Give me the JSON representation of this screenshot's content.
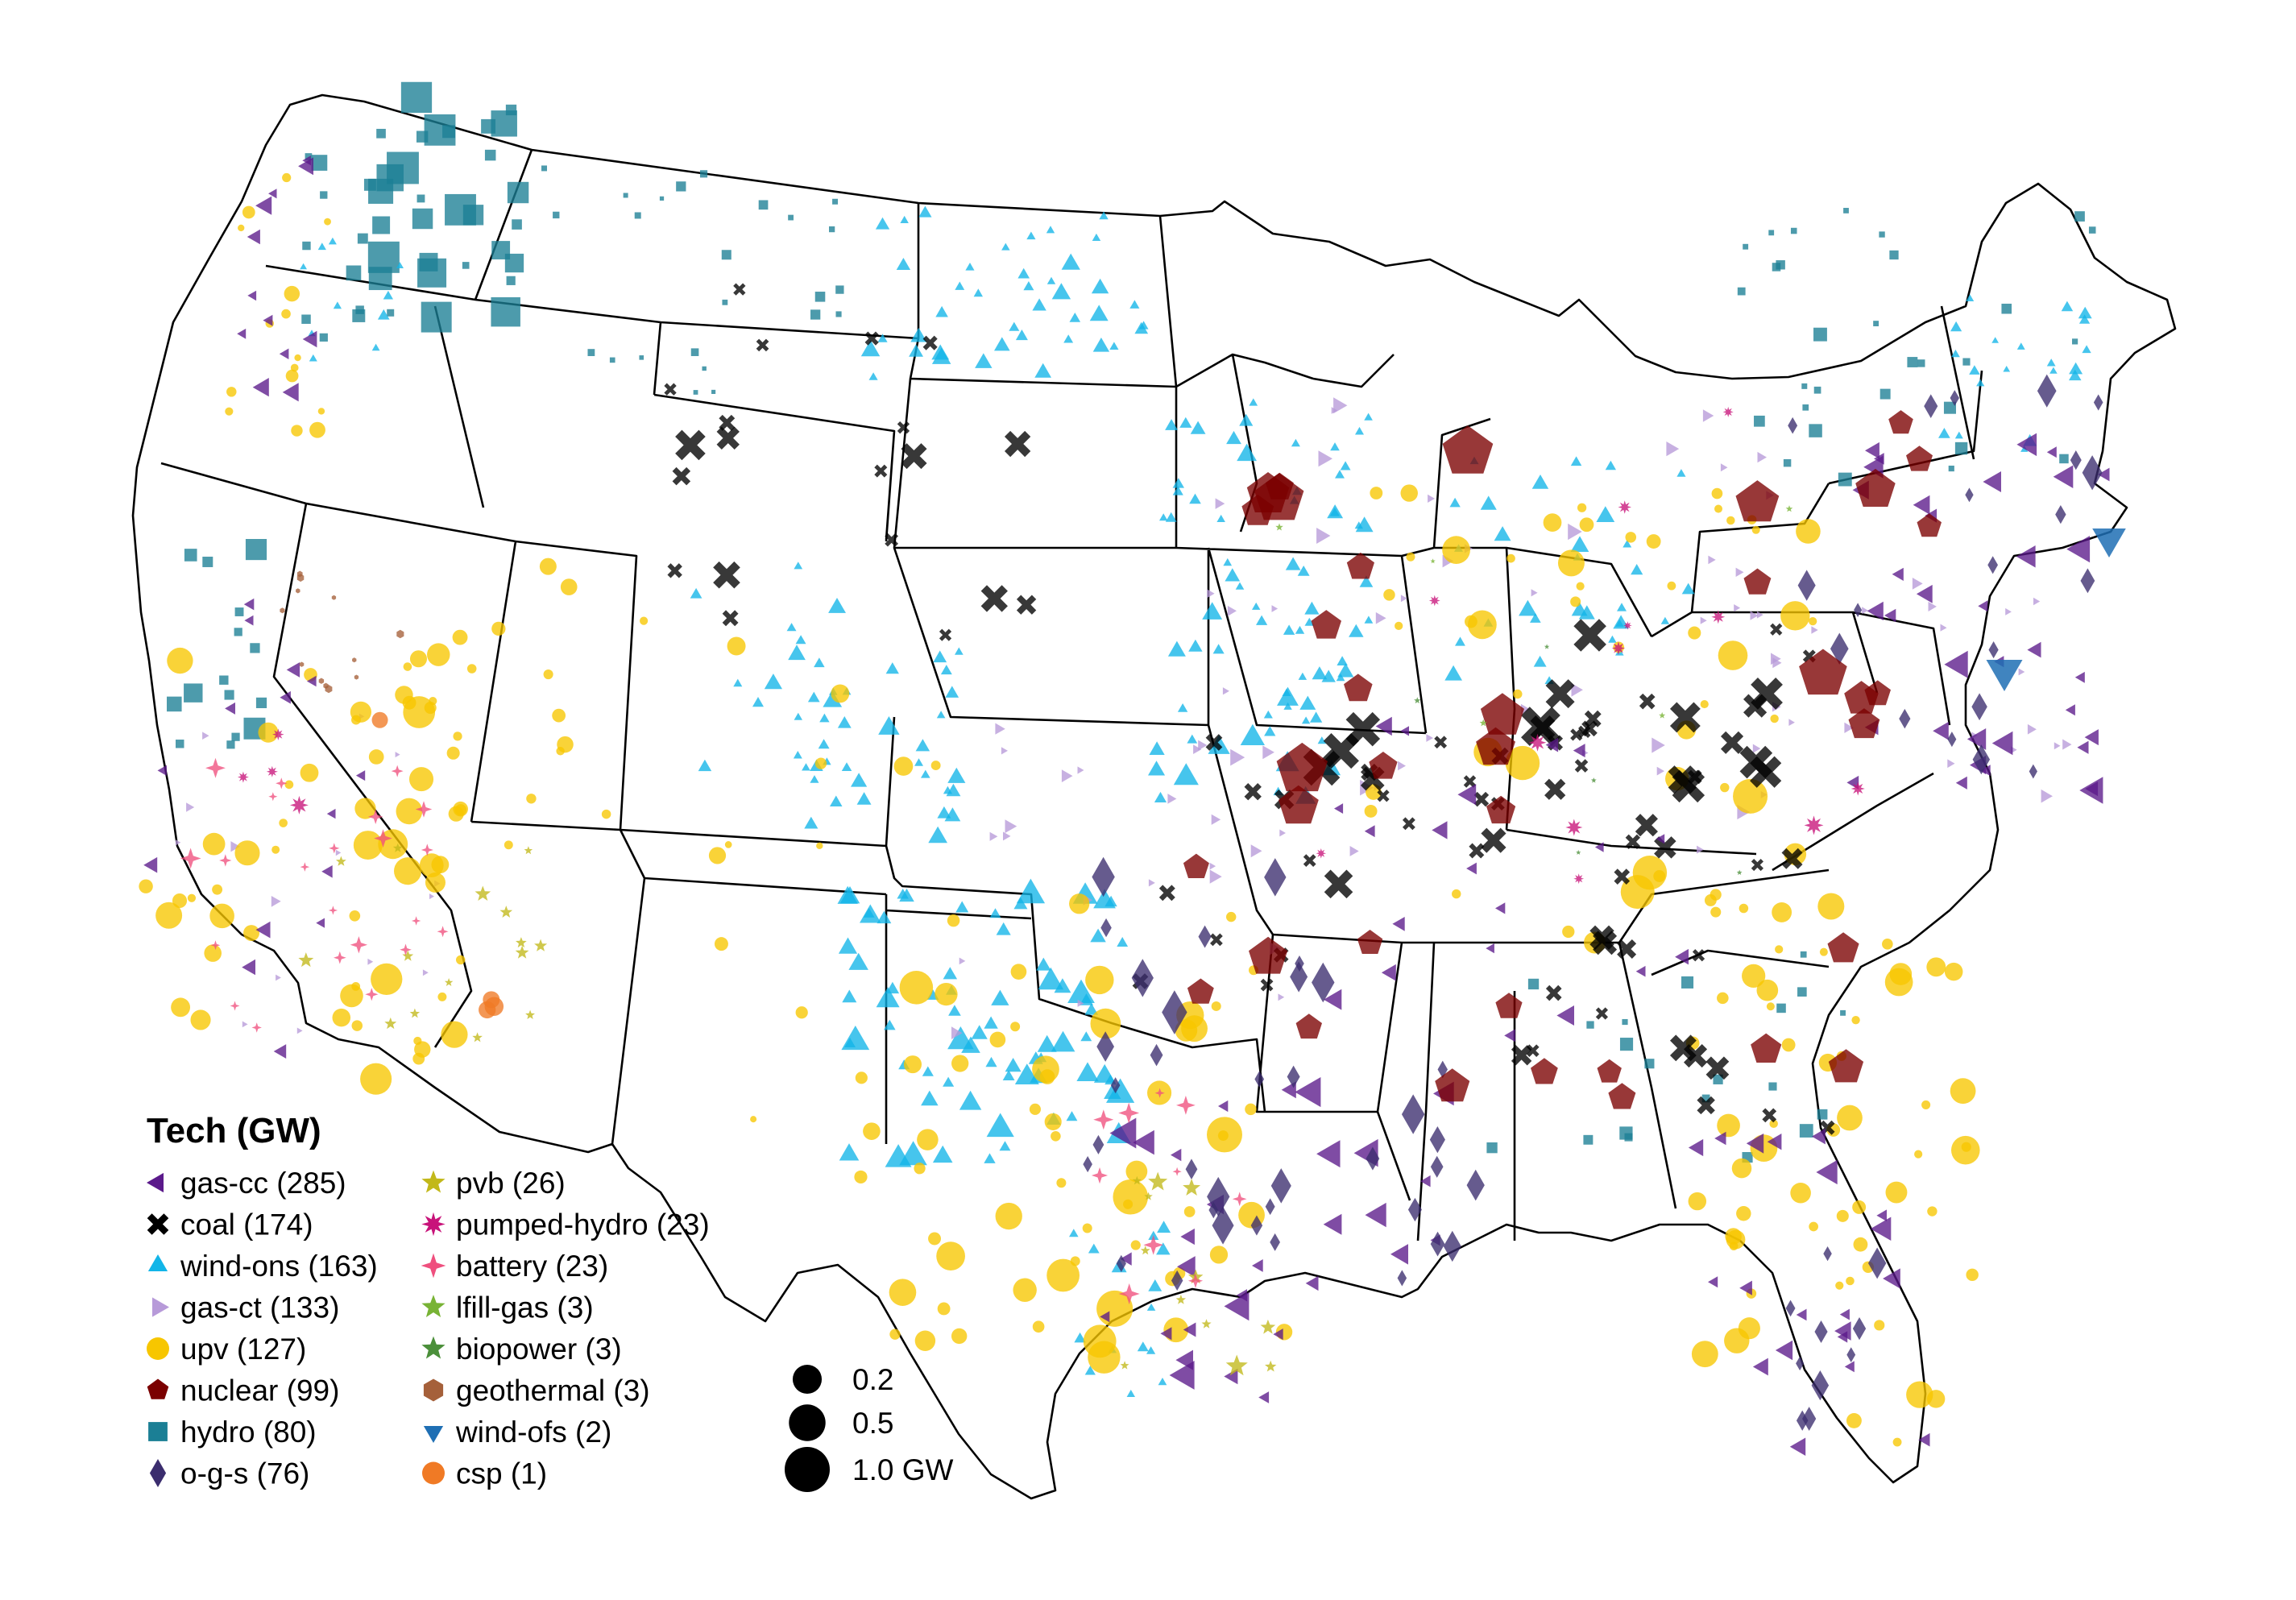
{
  "legend": {
    "title": "Tech (GW)",
    "items": [
      {
        "label": "gas-cc (285)",
        "tech": "gas-cc",
        "color": "#5b1a8b",
        "shape": "triangle-left"
      },
      {
        "label": "coal (174)",
        "tech": "coal",
        "color": "#000000",
        "shape": "x"
      },
      {
        "label": "wind-ons (163)",
        "tech": "wind-ons",
        "color": "#12b5e8",
        "shape": "triangle-up"
      },
      {
        "label": "gas-ct (133)",
        "tech": "gas-ct",
        "color": "#b79ad9",
        "shape": "triangle-right"
      },
      {
        "label": "upv (127)",
        "tech": "upv",
        "color": "#f7c600",
        "shape": "circle"
      },
      {
        "label": "nuclear (99)",
        "tech": "nuclear",
        "color": "#7b0000",
        "shape": "pentagon"
      },
      {
        "label": "hydro (80)",
        "tech": "hydro",
        "color": "#1b7f95",
        "shape": "square"
      },
      {
        "label": "o-g-s (76)",
        "tech": "o-g-s",
        "color": "#3b2d6e",
        "shape": "diamond"
      },
      {
        "label": "pvb (26)",
        "tech": "pvb",
        "color": "#c2b81a",
        "shape": "star"
      },
      {
        "label": "pumped-hydro (23)",
        "tech": "pumped-hydro",
        "color": "#c8137a",
        "shape": "star8"
      },
      {
        "label": "battery (23)",
        "tech": "battery",
        "color": "#ef4f7e",
        "shape": "star4"
      },
      {
        "label": "lfill-gas (3)",
        "tech": "lfill-gas",
        "color": "#78b335",
        "shape": "star"
      },
      {
        "label": "biopower (3)",
        "tech": "biopower",
        "color": "#4b8f3a",
        "shape": "star"
      },
      {
        "label": "geothermal (3)",
        "tech": "geothermal",
        "color": "#a5603a",
        "shape": "hexagon"
      },
      {
        "label": "wind-ofs (2)",
        "tech": "wind-ofs",
        "color": "#1f6fb4",
        "shape": "triangle-down"
      },
      {
        "label": "csp (1)",
        "tech": "csp",
        "color": "#f07a25",
        "shape": "circle"
      }
    ]
  },
  "size_legend": [
    {
      "label": "0.2",
      "gw": 0.2
    },
    {
      "label": "0.5",
      "gw": 0.5
    },
    {
      "label": "1.0 GW",
      "gw": 1.0
    }
  ]
}
